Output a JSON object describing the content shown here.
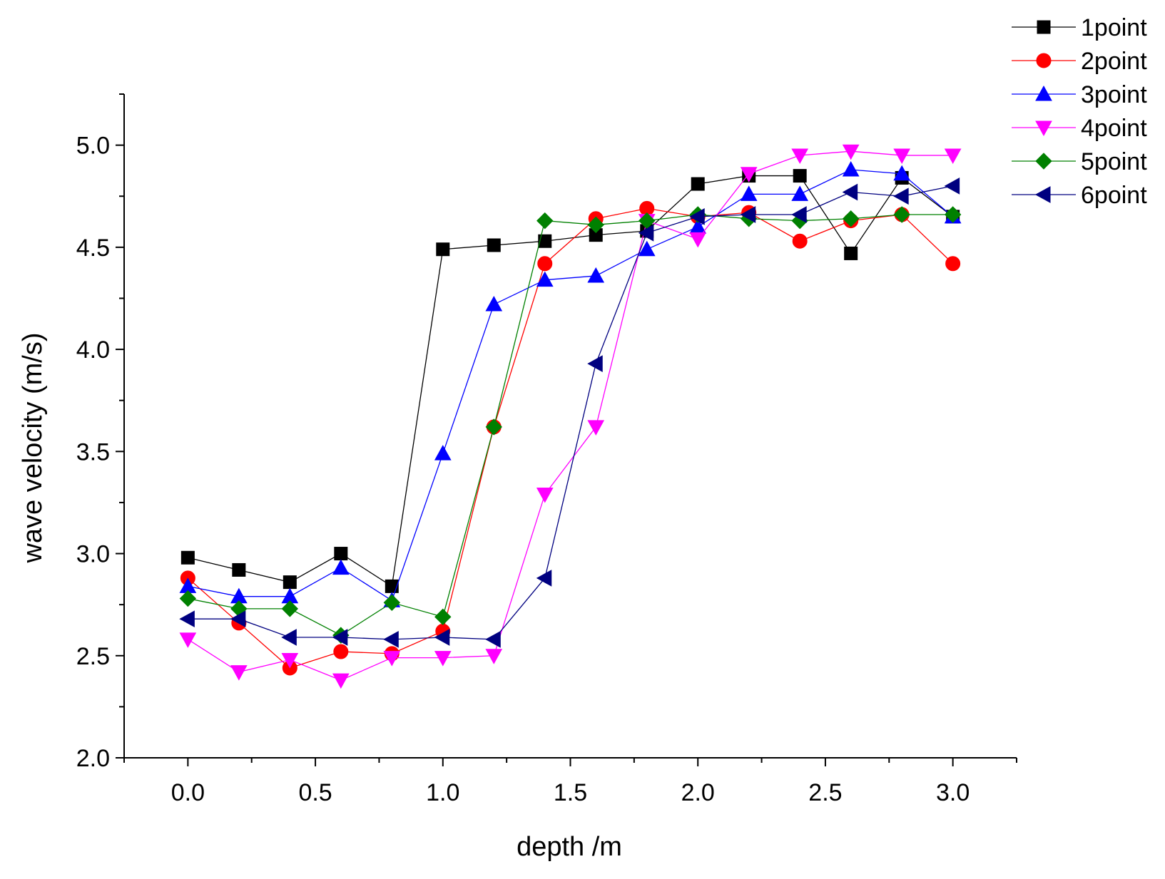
{
  "chart_data": {
    "type": "line",
    "title": "",
    "xlabel": "depth /m",
    "ylabel": "wave velocity (m/s)",
    "xlim": [
      -0.25,
      3.25
    ],
    "ylim": [
      2.0,
      5.25
    ],
    "x_ticks": [
      "0.0",
      "0.5",
      "1.0",
      "1.5",
      "2.0",
      "2.5",
      "3.0"
    ],
    "y_ticks": [
      "2.0",
      "2.5",
      "3.0",
      "3.5",
      "4.0",
      "4.5",
      "5.0"
    ],
    "legend_position": "top-right",
    "x": [
      0.0,
      0.2,
      0.4,
      0.6,
      0.8,
      1.0,
      1.2,
      1.4,
      1.6,
      1.8,
      2.0,
      2.2,
      2.4,
      2.6,
      2.8,
      3.0
    ],
    "series": [
      {
        "name": "1point",
        "color": "#000000",
        "marker": "square",
        "values": [
          2.98,
          2.92,
          2.86,
          3.0,
          2.84,
          4.49,
          4.51,
          4.53,
          4.56,
          4.58,
          4.81,
          4.85,
          4.85,
          4.47,
          4.84,
          4.65
        ]
      },
      {
        "name": "2point",
        "color": "#ff0000",
        "marker": "circle",
        "values": [
          2.88,
          2.66,
          2.44,
          2.52,
          2.51,
          2.62,
          3.62,
          4.42,
          4.64,
          4.69,
          4.65,
          4.67,
          4.53,
          4.63,
          4.66,
          4.42
        ]
      },
      {
        "name": "3point",
        "color": "#0000ff",
        "marker": "triangle-up",
        "values": [
          2.84,
          2.79,
          2.79,
          2.93,
          2.77,
          3.49,
          4.22,
          4.34,
          4.36,
          4.49,
          4.6,
          4.76,
          4.76,
          4.88,
          4.86,
          4.65
        ]
      },
      {
        "name": "4point",
        "color": "#ff00ff",
        "marker": "triangle-down",
        "values": [
          2.58,
          2.42,
          2.48,
          2.38,
          2.49,
          2.49,
          2.5,
          3.29,
          3.62,
          4.63,
          4.54,
          4.86,
          4.95,
          4.97,
          4.95,
          4.95
        ]
      },
      {
        "name": "5point",
        "color": "#008000",
        "marker": "diamond",
        "values": [
          2.78,
          2.73,
          2.73,
          2.6,
          2.76,
          2.69,
          3.62,
          4.63,
          4.61,
          4.63,
          4.66,
          4.64,
          4.63,
          4.64,
          4.66,
          4.66
        ]
      },
      {
        "name": "6point",
        "color": "#000080",
        "marker": "triangle-left",
        "values": [
          2.68,
          2.68,
          2.59,
          2.59,
          2.58,
          2.59,
          2.58,
          2.88,
          3.93,
          4.57,
          4.65,
          4.66,
          4.66,
          4.77,
          4.75,
          4.8
        ]
      }
    ]
  }
}
